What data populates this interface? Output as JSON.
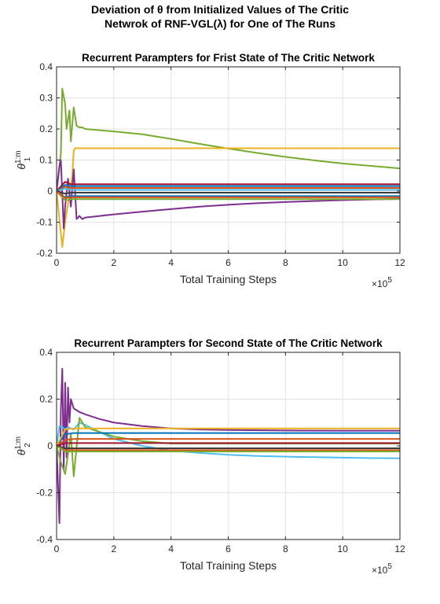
{
  "figure": {
    "title_line1": "Deviation of θ from Initialized Values of The Critic",
    "title_line2": "Netwrok of RNF-VGL(λ) for One of The Runs"
  },
  "chart_data": [
    {
      "type": "line",
      "title": "Recurrent Parampters for Frist State of The Critic Network",
      "xlabel": "Total Training Steps",
      "ylabel_base": "θ",
      "ylabel_sup": "1:m",
      "ylabel_sub": "1",
      "x_exponent_label": "×10",
      "x_exponent": "5",
      "xlim": [
        0,
        12
      ],
      "ylim": [
        -0.2,
        0.4
      ],
      "xticks": [
        0,
        2,
        4,
        6,
        8,
        10,
        12
      ],
      "yticks": [
        -0.2,
        -0.1,
        0,
        0.1,
        0.2,
        0.3,
        0.4
      ],
      "grid": true,
      "series": [
        {
          "color": "#77AC30",
          "x": [
            0,
            0.15,
            0.2,
            0.3,
            0.35,
            0.45,
            0.5,
            0.6,
            0.7,
            0.8,
            0.9,
            1,
            2,
            3,
            4,
            5,
            6,
            7,
            8,
            9,
            10,
            11,
            12
          ],
          "values": [
            0,
            0.12,
            0.33,
            0.28,
            0.2,
            0.26,
            0.16,
            0.27,
            0.21,
            0.205,
            0.205,
            0.2,
            0.192,
            0.183,
            0.168,
            0.152,
            0.137,
            0.123,
            0.11,
            0.099,
            0.089,
            0.081,
            0.073
          ]
        },
        {
          "color": "#EDB120",
          "x": [
            0,
            0.2,
            0.3,
            0.4,
            0.5,
            0.55,
            0.6,
            0.65,
            0.8,
            2,
            12
          ],
          "values": [
            0,
            -0.18,
            -0.1,
            -0.04,
            0.02,
            0.05,
            0.13,
            0.138,
            0.138,
            0.138,
            0.138
          ]
        },
        {
          "color": "#7E2F8E",
          "x": [
            0,
            0.1,
            0.15,
            0.25,
            0.3,
            0.4,
            0.5,
            0.6,
            0.7,
            0.8,
            0.9,
            1,
            2,
            3,
            4,
            5,
            6,
            7,
            8,
            9,
            10,
            11,
            12
          ],
          "values": [
            0,
            0.08,
            0.1,
            -0.12,
            -0.05,
            0.04,
            -0.05,
            0.07,
            -0.09,
            -0.08,
            -0.09,
            -0.085,
            -0.075,
            -0.066,
            -0.058,
            -0.05,
            -0.044,
            -0.039,
            -0.035,
            -0.032,
            -0.029,
            -0.027,
            -0.025
          ]
        },
        {
          "color": "#A2142F",
          "x": [
            0,
            0.3,
            0.5,
            1,
            12
          ],
          "values": [
            0,
            0.03,
            0.022,
            0.022,
            0.022
          ]
        },
        {
          "color": "#0072BD",
          "x": [
            0,
            0.3,
            0.5,
            1,
            12
          ],
          "values": [
            0,
            0.02,
            0.016,
            0.016,
            0.016
          ]
        },
        {
          "color": "#D95319",
          "x": [
            0,
            0.3,
            0.5,
            1,
            12
          ],
          "values": [
            0,
            0.014,
            0.01,
            0.01,
            0.01
          ]
        },
        {
          "color": "#4DBEEE",
          "x": [
            0,
            0.3,
            0.5,
            1,
            12
          ],
          "values": [
            0,
            0.008,
            0.004,
            0.004,
            0.004
          ]
        },
        {
          "color": "#3d3d3d",
          "x": [
            0,
            0.3,
            0.5,
            1,
            12
          ],
          "values": [
            0,
            -0.008,
            -0.005,
            -0.005,
            -0.005
          ]
        },
        {
          "color": "#0072BD",
          "x": [
            0,
            0.3,
            0.5,
            1,
            12
          ],
          "values": [
            0,
            -0.02,
            -0.016,
            -0.016,
            -0.016
          ]
        },
        {
          "color": "#77AC30",
          "x": [
            0,
            0.3,
            0.5,
            1,
            12
          ],
          "values": [
            0,
            -0.03,
            -0.026,
            -0.026,
            -0.026
          ]
        },
        {
          "color": "#D95319",
          "x": [
            0,
            0.3,
            0.5,
            1,
            12
          ],
          "values": [
            0,
            -0.022,
            -0.02,
            -0.02,
            -0.02
          ]
        }
      ]
    },
    {
      "type": "line",
      "title": "Recurrent Parampters for Second State of The Critic Network",
      "xlabel": "Total Training Steps",
      "ylabel_base": "θ",
      "ylabel_sup": "1:m",
      "ylabel_sub": "2",
      "x_exponent_label": "×10",
      "x_exponent": "5",
      "xlim": [
        0,
        12
      ],
      "ylim": [
        -0.4,
        0.4
      ],
      "xticks": [
        0,
        2,
        4,
        6,
        8,
        10,
        12
      ],
      "yticks": [
        -0.4,
        -0.2,
        0,
        0.2,
        0.4
      ],
      "grid": true,
      "series": [
        {
          "color": "#7E2F8E",
          "x": [
            0,
            0.1,
            0.15,
            0.2,
            0.25,
            0.3,
            0.35,
            0.4,
            0.45,
            0.5,
            0.6,
            0.8,
            1,
            1.5,
            2,
            3,
            4,
            5,
            6,
            8,
            10,
            12
          ],
          "values": [
            0,
            -0.33,
            0.15,
            0.33,
            -0.1,
            0.27,
            -0.05,
            0.25,
            0.1,
            0.2,
            0.16,
            0.145,
            0.135,
            0.115,
            0.1,
            0.085,
            0.075,
            0.07,
            0.068,
            0.066,
            0.065,
            0.065
          ]
        },
        {
          "color": "#4DBEEE",
          "x": [
            0,
            0.1,
            0.2,
            0.3,
            0.4,
            0.6,
            0.8,
            1,
            1.5,
            2,
            3,
            4,
            5,
            6,
            7,
            8,
            9,
            10,
            11,
            12
          ],
          "values": [
            0,
            0.085,
            0.08,
            0.07,
            0.08,
            0.07,
            0.1,
            0.09,
            0.06,
            0.03,
            0.0,
            -0.02,
            -0.03,
            -0.038,
            -0.043,
            -0.046,
            -0.048,
            -0.05,
            -0.052,
            -0.053
          ]
        },
        {
          "color": "#77AC30",
          "x": [
            0,
            0.15,
            0.3,
            0.5,
            0.6,
            0.8,
            1,
            2,
            3,
            4,
            12
          ],
          "values": [
            0,
            -0.07,
            -0.12,
            0.05,
            -0.13,
            0.12,
            0.08,
            0.04,
            0.02,
            0.01,
            0.01
          ]
        },
        {
          "color": "#0072BD",
          "x": [
            0,
            0.3,
            0.6,
            1,
            12
          ],
          "values": [
            0,
            0.05,
            0.055,
            0.055,
            0.055
          ]
        },
        {
          "color": "#EDB120",
          "x": [
            0,
            0.3,
            0.6,
            1,
            12
          ],
          "values": [
            0,
            0.07,
            0.075,
            0.075,
            0.075
          ]
        },
        {
          "color": "#D95319",
          "x": [
            0,
            0.3,
            0.6,
            1,
            12
          ],
          "values": [
            0,
            0.025,
            0.03,
            0.03,
            0.03
          ]
        },
        {
          "color": "#A2142F",
          "x": [
            0,
            0.3,
            0.6,
            1,
            12
          ],
          "values": [
            0,
            0.012,
            0.012,
            0.012,
            0.012
          ]
        },
        {
          "color": "#3d3d3d",
          "x": [
            0,
            0.3,
            0.6,
            1,
            12
          ],
          "values": [
            0,
            -0.01,
            -0.01,
            -0.01,
            -0.01
          ]
        },
        {
          "color": "#D95319",
          "x": [
            0,
            0.3,
            0.6,
            1,
            12
          ],
          "values": [
            0,
            -0.018,
            -0.018,
            -0.018,
            -0.018
          ]
        },
        {
          "color": "#77AC30",
          "x": [
            0,
            0.3,
            0.6,
            1,
            12
          ],
          "values": [
            0,
            -0.024,
            -0.024,
            -0.024,
            -0.024
          ]
        }
      ]
    }
  ]
}
